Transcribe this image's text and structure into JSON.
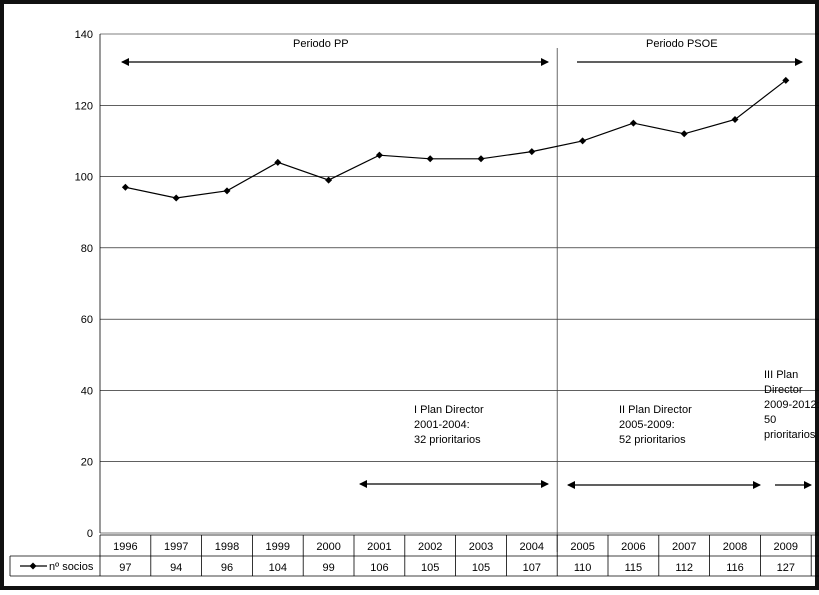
{
  "chart_data": {
    "type": "line",
    "categories": [
      "1996",
      "1997",
      "1998",
      "1999",
      "2000",
      "2001",
      "2002",
      "2003",
      "2004",
      "2005",
      "2006",
      "2007",
      "2008",
      "2009"
    ],
    "series": [
      {
        "name": "nº socios",
        "values": [
          97,
          94,
          96,
          104,
          99,
          106,
          105,
          105,
          107,
          110,
          115,
          112,
          116,
          127
        ]
      }
    ],
    "yticks": [
      "0",
      "20",
      "40",
      "60",
      "80",
      "100",
      "120",
      "140"
    ],
    "ylim": [
      0,
      140
    ],
    "grid": true,
    "legend": "left of data table",
    "data_table": true,
    "line_color": "#000000",
    "annotations": {
      "periodo_pp": "Periodo PP",
      "periodo_psoe": "Periodo PSOE",
      "plan1": [
        "I Plan Director",
        "2001-2004:",
        "32 prioritarios"
      ],
      "plan2": [
        "II Plan Director",
        "2005-2009:",
        "52 prioritarios"
      ],
      "plan3": [
        "III Plan",
        "Director",
        "2009-2012:",
        "50",
        "prioritarios"
      ]
    }
  }
}
